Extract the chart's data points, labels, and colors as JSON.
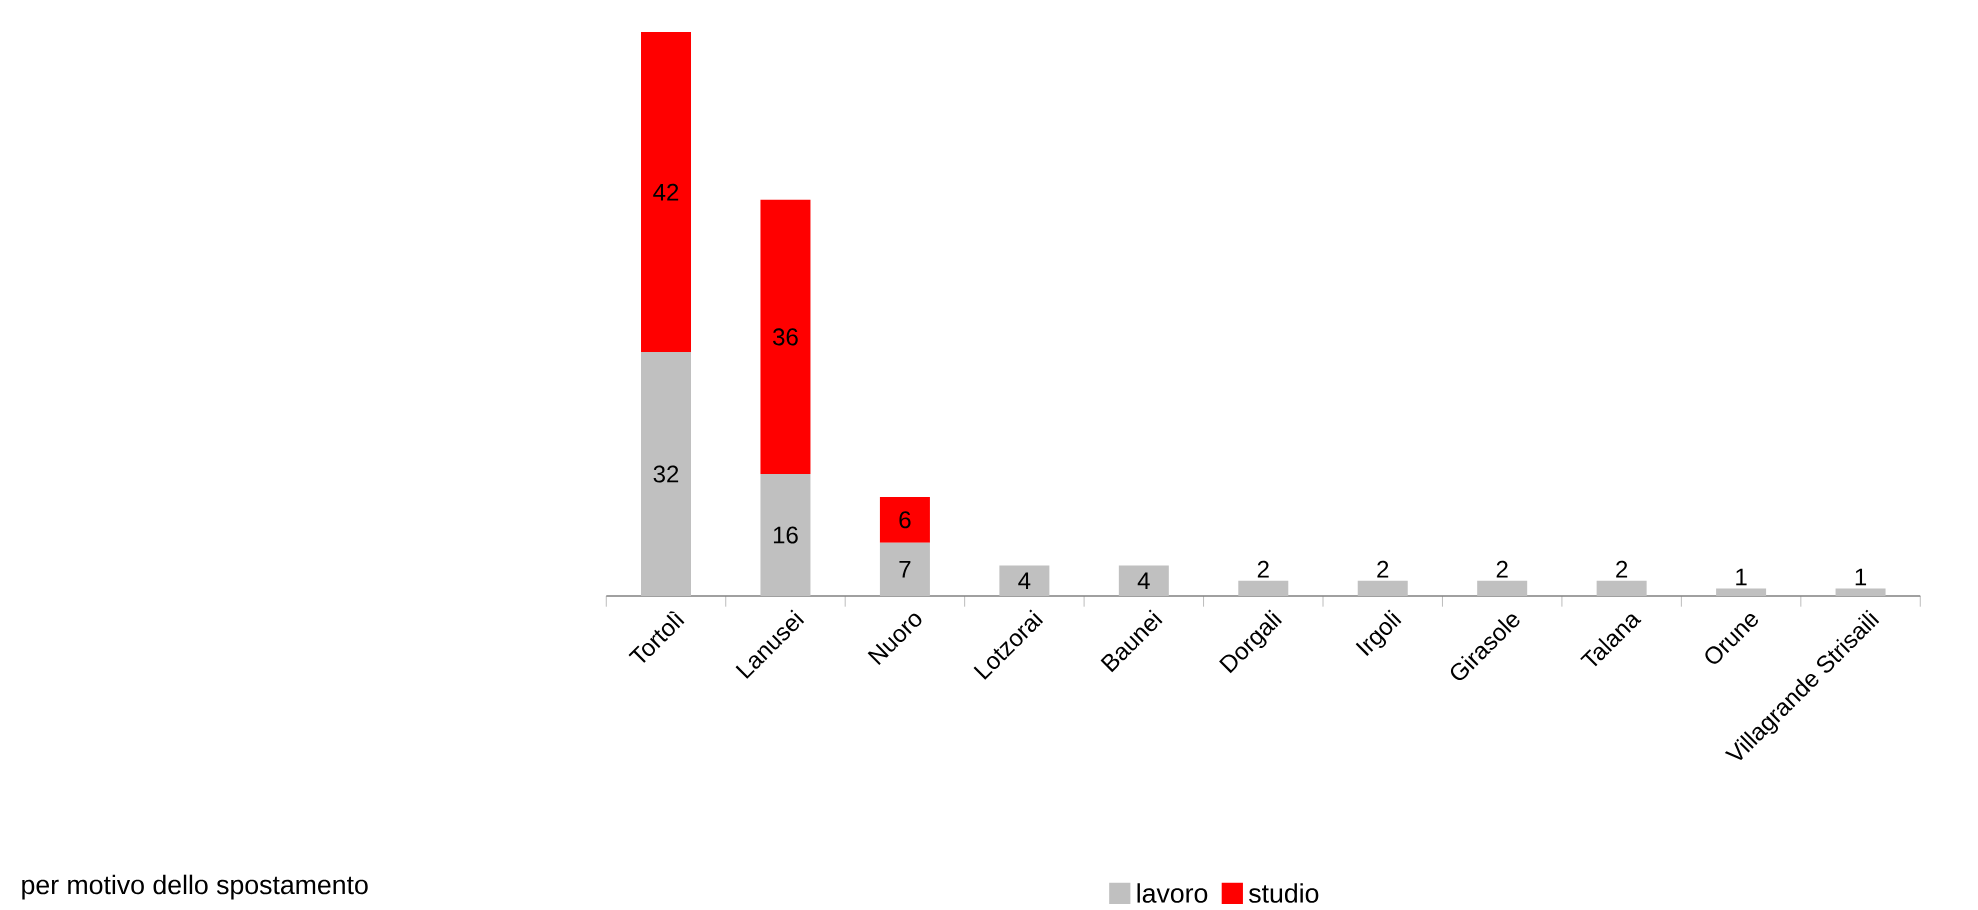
{
  "chart_data": {
    "type": "bar",
    "stacked": true,
    "categories": [
      "Tortolì",
      "Lanusei",
      "Nuoro",
      "Lotzorai",
      "Baunei",
      "Dorgali",
      "Irgoli",
      "Girasole",
      "Talana",
      "Orune",
      "Villagrande Strisaili"
    ],
    "series": [
      {
        "name": "lavoro",
        "color": "#c0c0c0",
        "values": [
          32,
          16,
          7,
          4,
          4,
          2,
          2,
          2,
          2,
          1,
          1
        ]
      },
      {
        "name": "studio",
        "color": "#ff0000",
        "values": [
          42,
          36,
          6,
          null,
          null,
          null,
          null,
          null,
          null,
          null,
          null
        ]
      }
    ],
    "ylim": [
      0,
      74
    ],
    "data_labels": true,
    "legend": "bottom",
    "annotations": [
      "per motivo dello spostamento"
    ]
  }
}
